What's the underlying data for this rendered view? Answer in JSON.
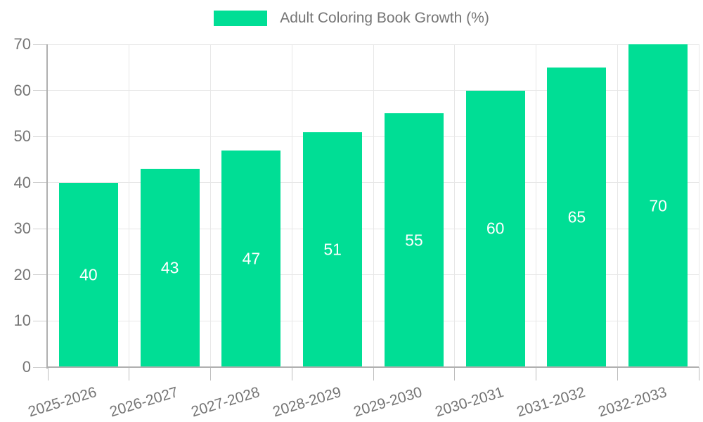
{
  "chart_data": {
    "type": "bar",
    "title": "",
    "legend_label": "Adult Coloring Book Growth (%)",
    "legend_position": "top",
    "categories": [
      "2025-2026",
      "2026-2027",
      "2027-2028",
      "2028-2029",
      "2029-2030",
      "2030-2031",
      "2031-2032",
      "2032-2033"
    ],
    "values": [
      40,
      43,
      47,
      51,
      55,
      60,
      65,
      70
    ],
    "y_ticks": [
      0,
      10,
      20,
      30,
      40,
      50,
      60,
      70
    ],
    "ylim": [
      0,
      70
    ],
    "xlabel": "",
    "ylabel": "",
    "grid": true,
    "x_label_rotation_deg": -17,
    "colors": {
      "bar": "#00DE95",
      "bar_value_label": "#ffffff",
      "axis_text": "#757575",
      "gridline": "#e7e7e7",
      "axis_line": "#b0b0b0",
      "background": "#ffffff"
    }
  }
}
